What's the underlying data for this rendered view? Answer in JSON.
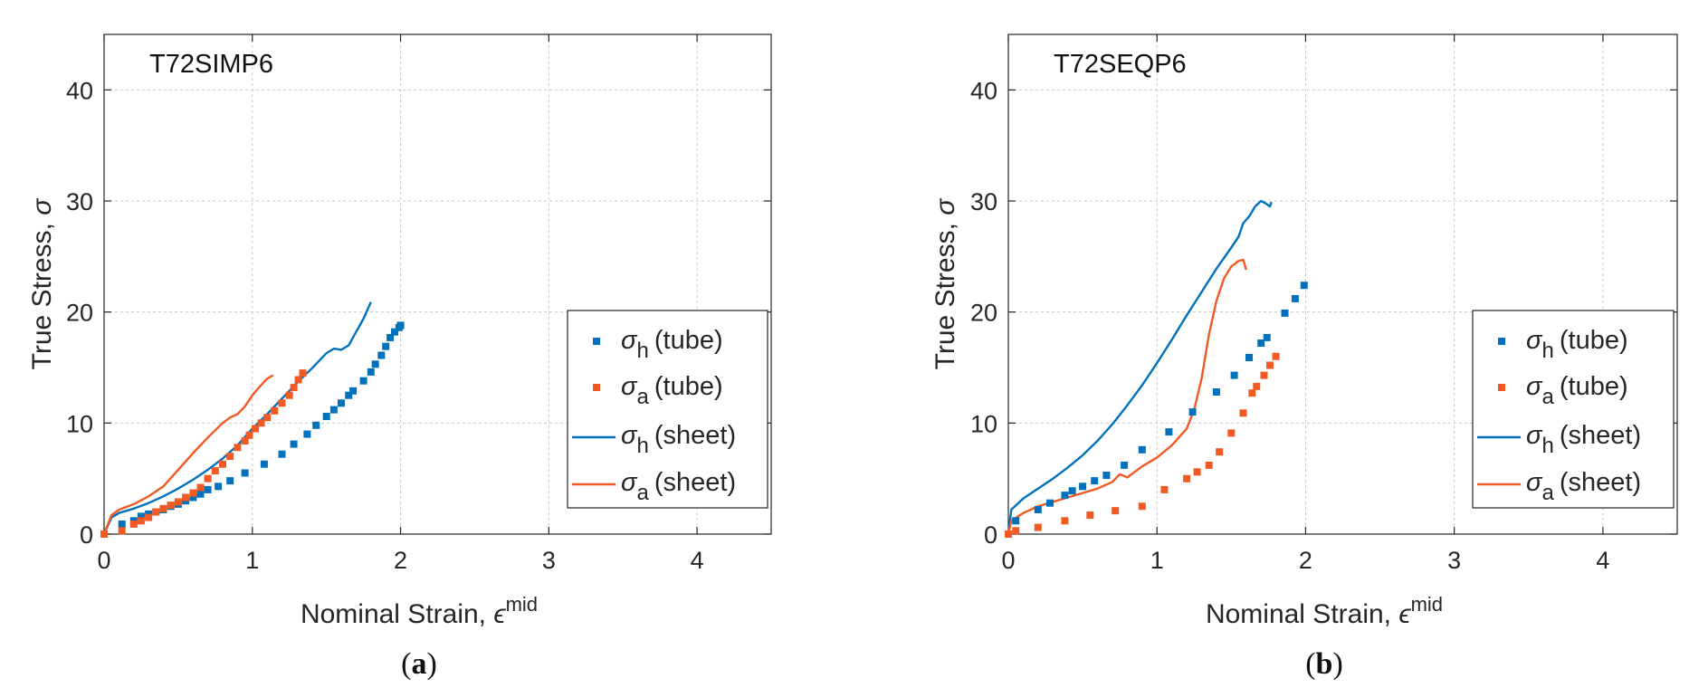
{
  "panels": [
    {
      "caption": {
        "open": "(",
        "letter": "a",
        "close": ")"
      },
      "chart_data": {
        "type": "scatter",
        "title": "T72SIMP6",
        "xlabel": "Nominal Strain, ",
        "xlabel_symbol": "ϵ",
        "xlabel_sup": "mid",
        "ylabel": "True Stress, ",
        "ylabel_symbol": "σ",
        "xlim": [
          0,
          4.5
        ],
        "ylim": [
          0,
          45
        ],
        "xticks": [
          0,
          1,
          2,
          3,
          4
        ],
        "yticks": [
          0,
          10,
          20,
          30,
          40
        ],
        "grid": true,
        "legend_position": "right-middle",
        "series": [
          {
            "name": "σh (tube)",
            "symbol": "σ",
            "sub": "h",
            "rest": "(tube)",
            "kind": "markers",
            "color": "#0072BD",
            "points": [
              [
                0,
                0
              ],
              [
                0.12,
                0.9
              ],
              [
                0.2,
                1.2
              ],
              [
                0.25,
                1.6
              ],
              [
                0.3,
                1.8
              ],
              [
                0.35,
                2.0
              ],
              [
                0.4,
                2.2
              ],
              [
                0.45,
                2.5
              ],
              [
                0.5,
                2.7
              ],
              [
                0.55,
                3.0
              ],
              [
                0.6,
                3.3
              ],
              [
                0.65,
                3.6
              ],
              [
                0.7,
                4.0
              ],
              [
                0.77,
                4.3
              ],
              [
                0.85,
                4.8
              ],
              [
                0.95,
                5.5
              ],
              [
                1.08,
                6.3
              ],
              [
                1.2,
                7.2
              ],
              [
                1.28,
                8.1
              ],
              [
                1.37,
                9.0
              ],
              [
                1.43,
                9.8
              ],
              [
                1.5,
                10.6
              ],
              [
                1.55,
                11.2
              ],
              [
                1.6,
                11.8
              ],
              [
                1.65,
                12.5
              ],
              [
                1.68,
                12.9
              ],
              [
                1.75,
                13.8
              ],
              [
                1.8,
                14.6
              ],
              [
                1.83,
                15.3
              ],
              [
                1.87,
                16.1
              ],
              [
                1.9,
                16.9
              ],
              [
                1.93,
                17.7
              ],
              [
                1.96,
                18.2
              ],
              [
                1.99,
                18.6
              ],
              [
                2.0,
                18.8
              ]
            ]
          },
          {
            "name": "σa (tube)",
            "symbol": "σ",
            "sub": "a",
            "rest": "(tube)",
            "kind": "markers",
            "color": "#F15A22",
            "points": [
              [
                0,
                0
              ],
              [
                0.12,
                0.3
              ],
              [
                0.2,
                0.9
              ],
              [
                0.25,
                1.2
              ],
              [
                0.3,
                1.5
              ],
              [
                0.35,
                2.0
              ],
              [
                0.4,
                2.3
              ],
              [
                0.45,
                2.6
              ],
              [
                0.5,
                2.9
              ],
              [
                0.55,
                3.3
              ],
              [
                0.6,
                3.7
              ],
              [
                0.65,
                4.2
              ],
              [
                0.7,
                5.0
              ],
              [
                0.75,
                5.7
              ],
              [
                0.8,
                6.3
              ],
              [
                0.85,
                7.0
              ],
              [
                0.9,
                7.8
              ],
              [
                0.95,
                8.4
              ],
              [
                0.98,
                8.9
              ],
              [
                1.02,
                9.5
              ],
              [
                1.06,
                10.0
              ],
              [
                1.1,
                10.5
              ],
              [
                1.15,
                11.1
              ],
              [
                1.2,
                11.8
              ],
              [
                1.25,
                12.5
              ],
              [
                1.28,
                13.2
              ],
              [
                1.31,
                13.9
              ],
              [
                1.34,
                14.5
              ]
            ]
          },
          {
            "name": "σh (sheet)",
            "symbol": "σ",
            "sub": "h",
            "rest": "(sheet)",
            "kind": "line",
            "color": "#0072BD",
            "points": [
              [
                0,
                0
              ],
              [
                0.05,
                1.5
              ],
              [
                0.1,
                1.9
              ],
              [
                0.2,
                2.3
              ],
              [
                0.3,
                2.8
              ],
              [
                0.4,
                3.4
              ],
              [
                0.5,
                4.1
              ],
              [
                0.6,
                4.9
              ],
              [
                0.7,
                5.8
              ],
              [
                0.8,
                6.8
              ],
              [
                0.9,
                8.0
              ],
              [
                1.0,
                9.5
              ],
              [
                1.1,
                10.8
              ],
              [
                1.2,
                12.2
              ],
              [
                1.3,
                13.6
              ],
              [
                1.4,
                14.9
              ],
              [
                1.5,
                16.3
              ],
              [
                1.55,
                16.7
              ],
              [
                1.6,
                16.6
              ],
              [
                1.65,
                17.0
              ],
              [
                1.7,
                18.2
              ],
              [
                1.75,
                19.4
              ],
              [
                1.8,
                20.9
              ]
            ]
          },
          {
            "name": "σa (sheet)",
            "symbol": "σ",
            "sub": "a",
            "rest": "(sheet)",
            "kind": "line",
            "color": "#F15A22",
            "points": [
              [
                0,
                0
              ],
              [
                0.05,
                1.7
              ],
              [
                0.1,
                2.2
              ],
              [
                0.2,
                2.7
              ],
              [
                0.3,
                3.4
              ],
              [
                0.4,
                4.3
              ],
              [
                0.5,
                5.8
              ],
              [
                0.6,
                7.3
              ],
              [
                0.7,
                8.7
              ],
              [
                0.8,
                10.0
              ],
              [
                0.85,
                10.5
              ],
              [
                0.9,
                10.8
              ],
              [
                0.95,
                11.5
              ],
              [
                1.0,
                12.5
              ],
              [
                1.05,
                13.3
              ],
              [
                1.1,
                14.0
              ],
              [
                1.14,
                14.3
              ]
            ]
          }
        ]
      }
    },
    {
      "caption": {
        "open": "(",
        "letter": "b",
        "close": ")"
      },
      "chart_data": {
        "type": "scatter",
        "title": "T72SEQP6",
        "xlabel": "Nominal Strain, ",
        "xlabel_symbol": "ϵ",
        "xlabel_sup": "mid",
        "ylabel": "True Stress, ",
        "ylabel_symbol": "σ",
        "xlim": [
          0,
          4.5
        ],
        "ylim": [
          0,
          45
        ],
        "xticks": [
          0,
          1,
          2,
          3,
          4
        ],
        "yticks": [
          0,
          10,
          20,
          30,
          40
        ],
        "grid": true,
        "legend_position": "right-middle",
        "series": [
          {
            "name": "σh (tube)",
            "symbol": "σ",
            "sub": "h",
            "rest": "(tube)",
            "kind": "markers",
            "color": "#0072BD",
            "points": [
              [
                0,
                0
              ],
              [
                0.05,
                1.2
              ],
              [
                0.2,
                2.2
              ],
              [
                0.28,
                2.8
              ],
              [
                0.38,
                3.5
              ],
              [
                0.43,
                3.9
              ],
              [
                0.5,
                4.3
              ],
              [
                0.58,
                4.8
              ],
              [
                0.66,
                5.3
              ],
              [
                0.78,
                6.2
              ],
              [
                0.9,
                7.6
              ],
              [
                1.08,
                9.2
              ],
              [
                1.24,
                11.0
              ],
              [
                1.4,
                12.8
              ],
              [
                1.52,
                14.3
              ],
              [
                1.62,
                15.9
              ],
              [
                1.7,
                17.2
              ],
              [
                1.74,
                17.7
              ],
              [
                1.86,
                19.9
              ],
              [
                1.93,
                21.2
              ],
              [
                1.99,
                22.4
              ]
            ]
          },
          {
            "name": "σa (tube)",
            "symbol": "σ",
            "sub": "a",
            "rest": "(tube)",
            "kind": "markers",
            "color": "#F15A22",
            "points": [
              [
                0,
                0
              ],
              [
                0.05,
                0.3
              ],
              [
                0.2,
                0.6
              ],
              [
                0.38,
                1.2
              ],
              [
                0.55,
                1.7
              ],
              [
                0.72,
                2.1
              ],
              [
                0.9,
                2.5
              ],
              [
                1.05,
                4.0
              ],
              [
                1.2,
                5.0
              ],
              [
                1.27,
                5.6
              ],
              [
                1.35,
                6.2
              ],
              [
                1.42,
                7.4
              ],
              [
                1.5,
                9.1
              ],
              [
                1.58,
                10.9
              ],
              [
                1.64,
                12.7
              ],
              [
                1.67,
                13.3
              ],
              [
                1.72,
                14.3
              ],
              [
                1.76,
                15.2
              ],
              [
                1.8,
                16.0
              ]
            ]
          },
          {
            "name": "σh (sheet)",
            "symbol": "σ",
            "sub": "h",
            "rest": "(sheet)",
            "kind": "line",
            "color": "#0072BD",
            "points": [
              [
                0,
                0
              ],
              [
                0.02,
                2.2
              ],
              [
                0.1,
                3.2
              ],
              [
                0.2,
                4.1
              ],
              [
                0.3,
                5.0
              ],
              [
                0.4,
                6.0
              ],
              [
                0.5,
                7.1
              ],
              [
                0.6,
                8.4
              ],
              [
                0.7,
                9.9
              ],
              [
                0.8,
                11.6
              ],
              [
                0.9,
                13.4
              ],
              [
                1.0,
                15.4
              ],
              [
                1.1,
                17.5
              ],
              [
                1.2,
                19.7
              ],
              [
                1.3,
                21.8
              ],
              [
                1.4,
                23.9
              ],
              [
                1.5,
                25.8
              ],
              [
                1.55,
                26.8
              ],
              [
                1.58,
                28.0
              ],
              [
                1.62,
                28.6
              ],
              [
                1.66,
                29.5
              ],
              [
                1.7,
                30.0
              ],
              [
                1.73,
                29.8
              ],
              [
                1.76,
                29.5
              ],
              [
                1.77,
                29.9
              ]
            ]
          },
          {
            "name": "σa (sheet)",
            "symbol": "σ",
            "sub": "a",
            "rest": "(sheet)",
            "kind": "line",
            "color": "#F15A22",
            "points": [
              [
                0,
                0
              ],
              [
                0.02,
                1.2
              ],
              [
                0.1,
                1.9
              ],
              [
                0.2,
                2.5
              ],
              [
                0.3,
                2.9
              ],
              [
                0.4,
                3.3
              ],
              [
                0.5,
                3.7
              ],
              [
                0.6,
                4.1
              ],
              [
                0.7,
                4.7
              ],
              [
                0.75,
                5.4
              ],
              [
                0.8,
                5.1
              ],
              [
                0.85,
                5.6
              ],
              [
                0.9,
                6.1
              ],
              [
                1.0,
                6.9
              ],
              [
                1.1,
                8.0
              ],
              [
                1.2,
                9.5
              ],
              [
                1.25,
                11.2
              ],
              [
                1.3,
                14.0
              ],
              [
                1.35,
                18.0
              ],
              [
                1.4,
                21.0
              ],
              [
                1.45,
                23.0
              ],
              [
                1.5,
                24.1
              ],
              [
                1.55,
                24.6
              ],
              [
                1.58,
                24.7
              ],
              [
                1.6,
                23.8
              ]
            ]
          }
        ]
      }
    }
  ]
}
